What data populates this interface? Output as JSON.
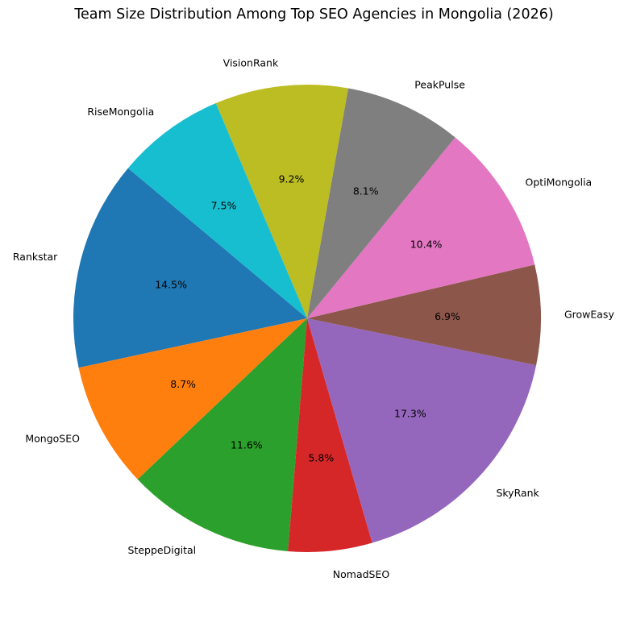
{
  "chart_data": {
    "type": "pie",
    "title": "Team Size Distribution Among Top SEO Agencies in Mongolia (2026)",
    "start_angle_deg": 140,
    "direction": "counterclockwise",
    "autopct_format": "%.1f%%",
    "legend": false,
    "slices": [
      {
        "label": "Rankstar",
        "value": 14.5,
        "color": "#1f77b4"
      },
      {
        "label": "MongoSEO",
        "value": 8.7,
        "color": "#ff7f0e"
      },
      {
        "label": "SteppeDigital",
        "value": 11.6,
        "color": "#2ca02c"
      },
      {
        "label": "NomadSEO",
        "value": 5.8,
        "color": "#d62728"
      },
      {
        "label": "SkyRank",
        "value": 17.3,
        "color": "#9467bd"
      },
      {
        "label": "GrowEasy",
        "value": 6.9,
        "color": "#8c564b"
      },
      {
        "label": "OptiMongolia",
        "value": 10.4,
        "color": "#e377c2"
      },
      {
        "label": "PeakPulse",
        "value": 8.1,
        "color": "#7f7f7f"
      },
      {
        "label": "VisionRank",
        "value": 9.2,
        "color": "#bcbd22"
      },
      {
        "label": "RiseMongolia",
        "value": 7.5,
        "color": "#17becf"
      }
    ]
  }
}
